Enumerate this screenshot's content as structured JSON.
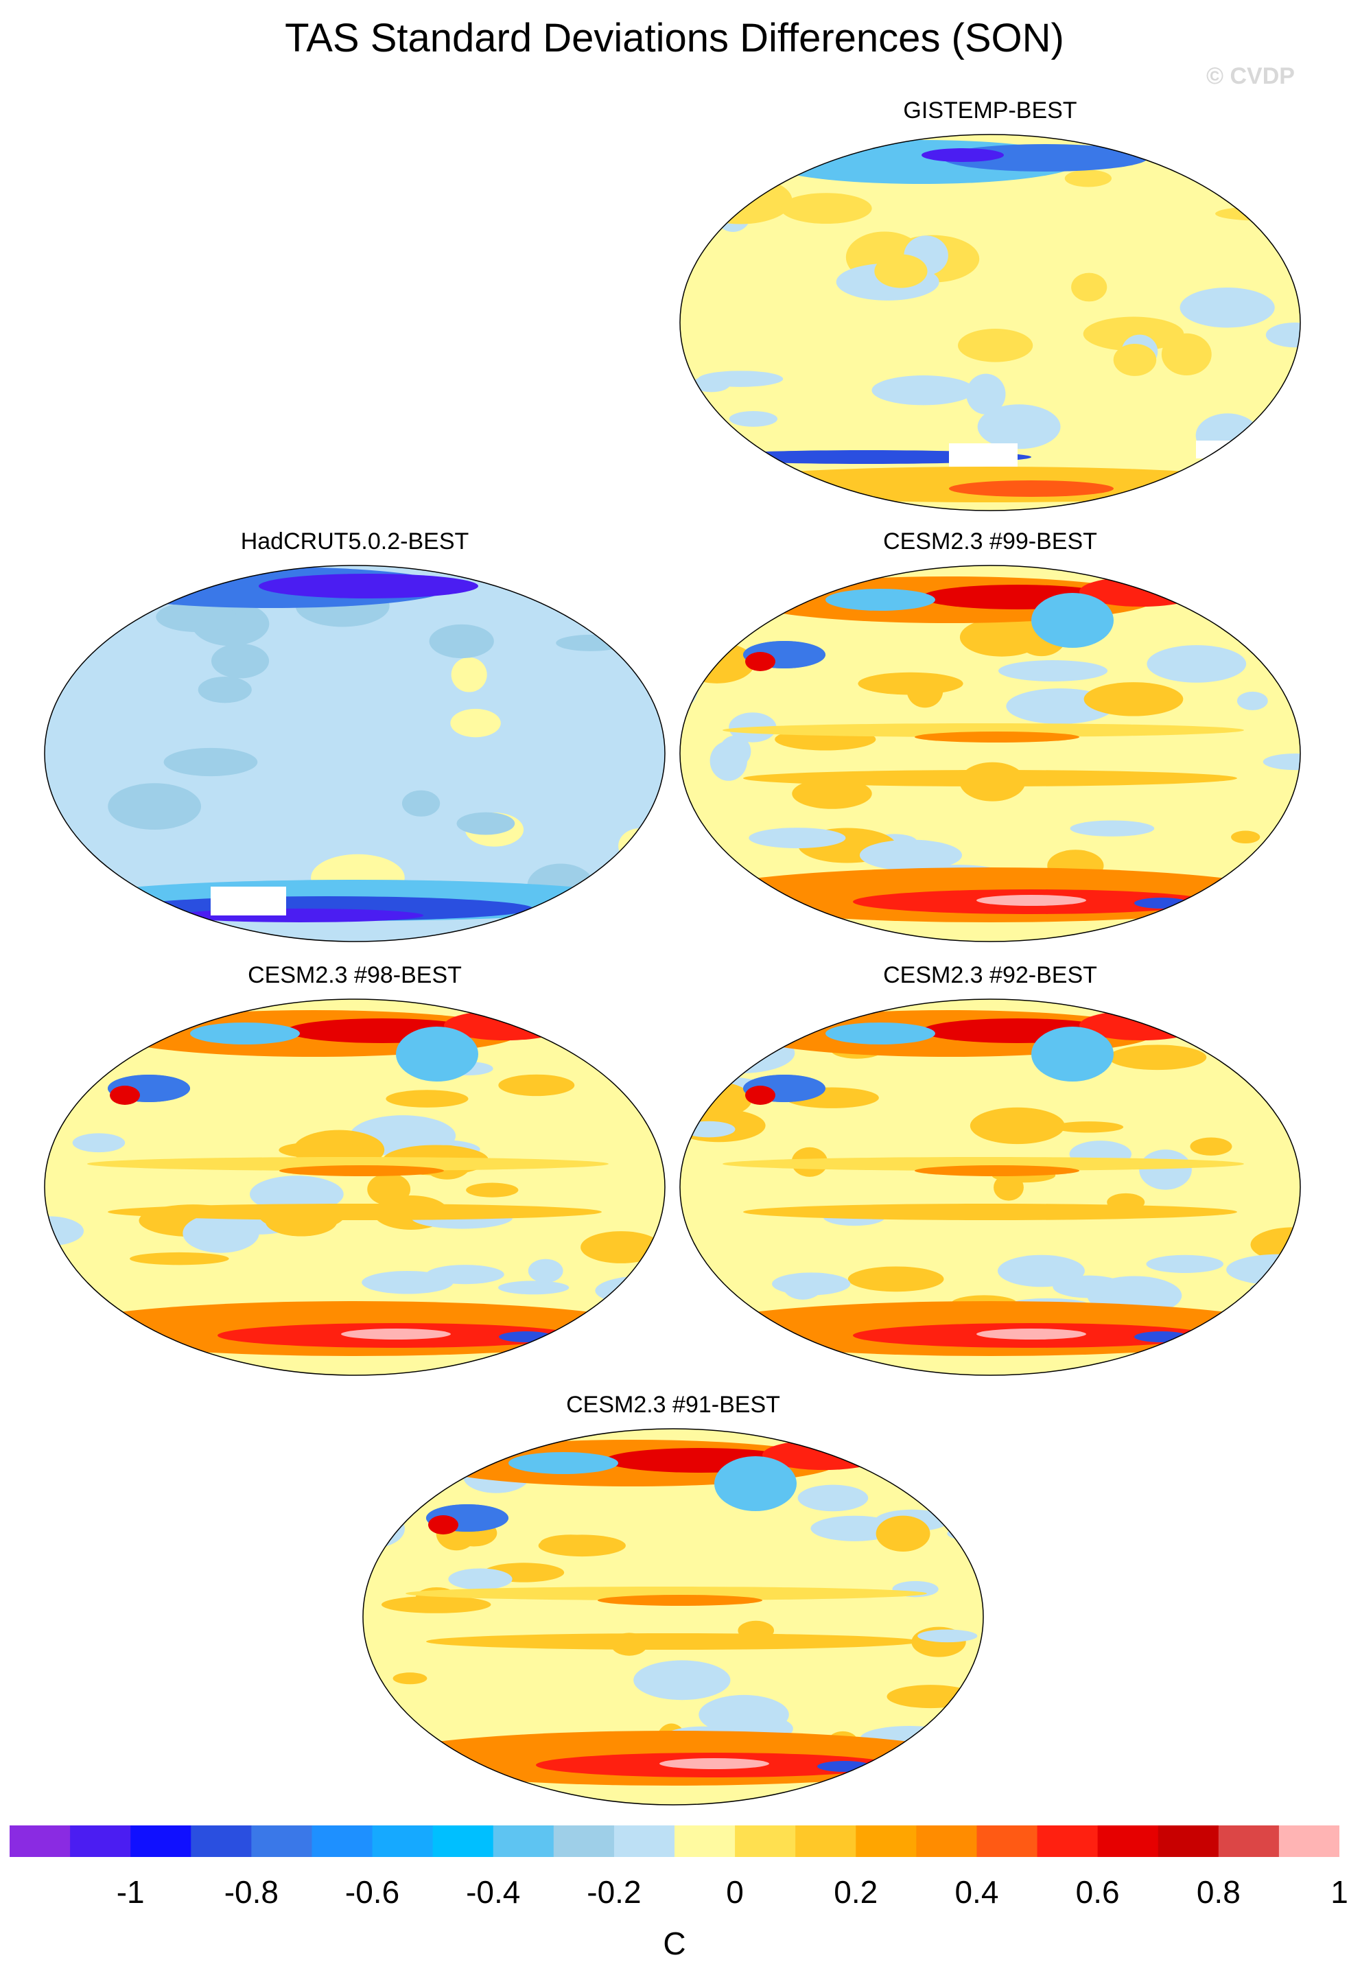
{
  "title": "TAS Standard Deviations Differences (SON)",
  "watermark": "© CVDP",
  "panels": [
    {
      "label": "GISTEMP-BEST",
      "pattern": "mixed_cool"
    },
    {
      "label": "HadCRUT5.0.2-BEST",
      "pattern": "cool"
    },
    {
      "label": "CESM2.3 #99-BEST",
      "pattern": "warm"
    },
    {
      "label": "CESM2.3 #98-BEST",
      "pattern": "warm"
    },
    {
      "label": "CESM2.3 #92-BEST",
      "pattern": "warm"
    },
    {
      "label": "CESM2.3 #91-BEST",
      "pattern": "warm"
    }
  ],
  "colorbar": {
    "unit": "C",
    "ticks": [
      "-1",
      "-0.8",
      "-0.6",
      "-0.4",
      "-0.2",
      "0",
      "0.2",
      "0.4",
      "0.6",
      "0.8",
      "1"
    ],
    "colors": [
      "#8a2be2",
      "#4b1df2",
      "#1010ff",
      "#2a4fe0",
      "#3a78e8",
      "#1e90ff",
      "#16a9ff",
      "#00bfff",
      "#5ec4f2",
      "#9ecfe8",
      "#bde0f5",
      "#fffaa0",
      "#ffe050",
      "#ffc828",
      "#ffa500",
      "#ff8c00",
      "#ff5a14",
      "#ff2010",
      "#e60000",
      "#c80000",
      "#dc4646",
      "#ffb4b4"
    ]
  }
}
